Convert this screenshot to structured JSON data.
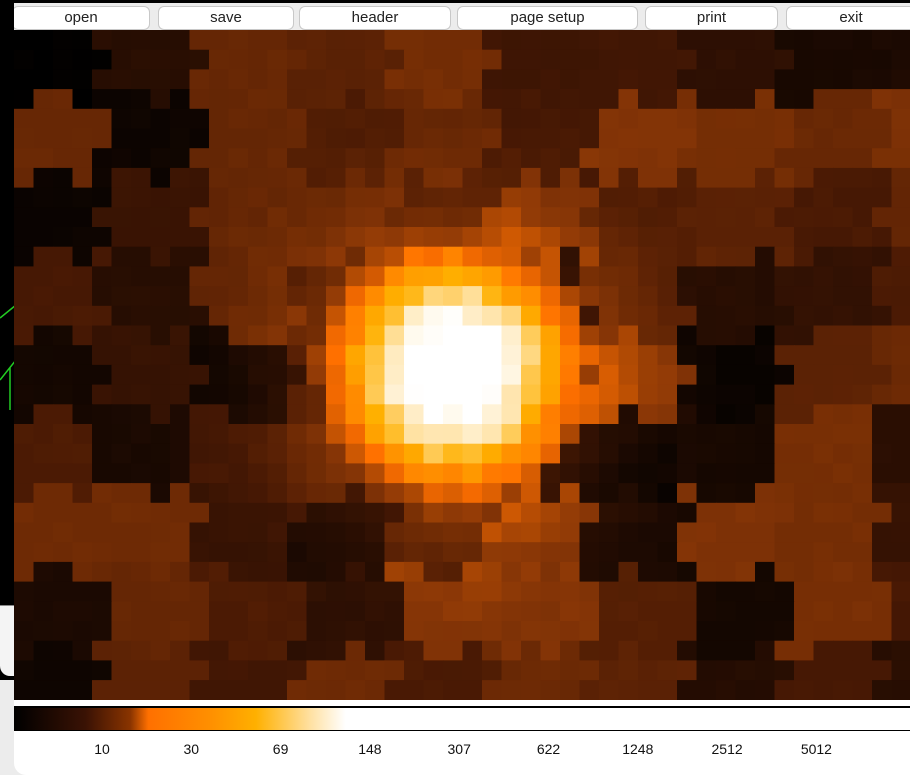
{
  "toolbar": {
    "buttons": [
      "open",
      "save",
      "header",
      "page setup",
      "print",
      "exit"
    ]
  },
  "colorbar": {
    "labels": [
      "10",
      "30",
      "69",
      "148",
      "307",
      "622",
      "1248",
      "2512",
      "5012"
    ]
  }
}
